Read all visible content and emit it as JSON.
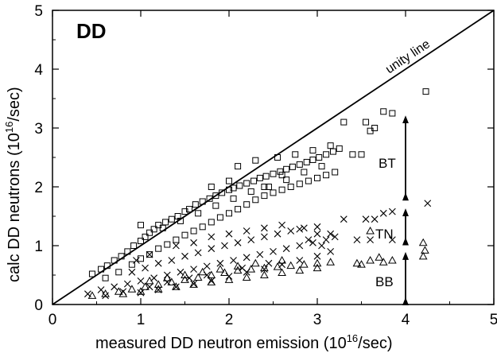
{
  "chart_data": {
    "type": "scatter",
    "title": "DD",
    "xlabel": "measured DD neutron emission (10",
    "xlabel_sup": "16",
    "xlabel_tail": "/sec)",
    "ylabel": "calc DD neutrons (10",
    "ylabel_sup": "16",
    "ylabel_tail": "/sec)",
    "xlim": [
      0,
      5
    ],
    "ylim": [
      0,
      5
    ],
    "xticks": [
      "0",
      "1",
      "2",
      "3",
      "4",
      "5"
    ],
    "yticks": [
      "0",
      "1",
      "2",
      "3",
      "4",
      "5"
    ],
    "grid": false,
    "legend": "none",
    "reference_line": {
      "label": "unity line",
      "x": [
        0,
        5
      ],
      "y": [
        0,
        5
      ]
    },
    "series": [
      {
        "key": "BT",
        "marker": "square",
        "points": [
          [
            0.45,
            0.52
          ],
          [
            0.55,
            0.6
          ],
          [
            0.62,
            0.66
          ],
          [
            0.7,
            0.75
          ],
          [
            0.78,
            0.82
          ],
          [
            0.85,
            0.9
          ],
          [
            0.92,
            1.0
          ],
          [
            1.0,
            1.08
          ],
          [
            1.05,
            1.15
          ],
          [
            1.1,
            1.22
          ],
          [
            1.15,
            1.28
          ],
          [
            1.2,
            1.35
          ],
          [
            1.28,
            1.4
          ],
          [
            1.35,
            1.45
          ],
          [
            1.42,
            1.5
          ],
          [
            1.5,
            1.58
          ],
          [
            1.55,
            1.62
          ],
          [
            1.62,
            1.7
          ],
          [
            1.7,
            1.75
          ],
          [
            1.78,
            1.8
          ],
          [
            1.85,
            1.85
          ],
          [
            1.92,
            1.9
          ],
          [
            2.0,
            1.95
          ],
          [
            2.05,
            1.98
          ],
          [
            2.12,
            2.02
          ],
          [
            2.2,
            2.06
          ],
          [
            2.28,
            2.1
          ],
          [
            2.35,
            2.15
          ],
          [
            2.42,
            2.18
          ],
          [
            2.5,
            2.22
          ],
          [
            2.58,
            2.26
          ],
          [
            2.65,
            2.3
          ],
          [
            2.72,
            2.34
          ],
          [
            2.8,
            2.38
          ],
          [
            2.88,
            2.42
          ],
          [
            2.95,
            2.46
          ],
          [
            3.02,
            2.5
          ],
          [
            3.1,
            2.55
          ],
          [
            3.18,
            2.6
          ],
          [
            3.25,
            2.65
          ],
          [
            0.6,
            0.45
          ],
          [
            0.75,
            0.55
          ],
          [
            0.9,
            0.68
          ],
          [
            1.0,
            0.78
          ],
          [
            1.1,
            0.85
          ],
          [
            1.2,
            0.95
          ],
          [
            1.3,
            1.02
          ],
          [
            1.4,
            1.1
          ],
          [
            1.5,
            1.18
          ],
          [
            1.6,
            1.25
          ],
          [
            1.7,
            1.32
          ],
          [
            1.8,
            1.4
          ],
          [
            1.9,
            1.48
          ],
          [
            2.0,
            1.55
          ],
          [
            2.1,
            1.62
          ],
          [
            2.2,
            1.7
          ],
          [
            2.3,
            1.78
          ],
          [
            2.4,
            1.85
          ],
          [
            2.5,
            1.9
          ],
          [
            2.6,
            1.95
          ],
          [
            2.7,
            2.0
          ],
          [
            2.8,
            2.05
          ],
          [
            2.9,
            2.1
          ],
          [
            3.0,
            2.15
          ],
          [
            3.1,
            2.2
          ],
          [
            3.2,
            2.25
          ],
          [
            1.25,
            1.3
          ],
          [
            1.45,
            1.42
          ],
          [
            1.65,
            1.55
          ],
          [
            1.85,
            1.68
          ],
          [
            2.05,
            1.8
          ],
          [
            2.25,
            1.92
          ],
          [
            2.45,
            2.0
          ],
          [
            2.65,
            2.12
          ],
          [
            2.85,
            2.25
          ],
          [
            3.05,
            2.35
          ],
          [
            2.1,
            2.35
          ],
          [
            2.3,
            2.45
          ],
          [
            2.55,
            2.5
          ],
          [
            2.75,
            2.55
          ],
          [
            2.95,
            2.62
          ],
          [
            3.15,
            2.7
          ],
          [
            1.8,
            2.0
          ],
          [
            2.0,
            2.1
          ],
          [
            2.4,
            2.0
          ],
          [
            2.6,
            2.2
          ],
          [
            3.3,
            3.1
          ],
          [
            3.4,
            2.55
          ],
          [
            3.5,
            2.55
          ],
          [
            3.55,
            3.1
          ],
          [
            3.6,
            2.95
          ],
          [
            3.75,
            3.28
          ],
          [
            3.85,
            3.25
          ],
          [
            4.23,
            3.62
          ],
          [
            3.65,
            3.0
          ],
          [
            1.0,
            1.35
          ]
        ]
      },
      {
        "key": "TN",
        "marker": "cross",
        "points": [
          [
            0.4,
            0.18
          ],
          [
            0.55,
            0.25
          ],
          [
            0.7,
            0.3
          ],
          [
            0.85,
            0.35
          ],
          [
            1.0,
            0.4
          ],
          [
            1.15,
            0.45
          ],
          [
            1.3,
            0.5
          ],
          [
            1.45,
            0.55
          ],
          [
            1.6,
            0.6
          ],
          [
            1.75,
            0.65
          ],
          [
            1.9,
            0.7
          ],
          [
            2.05,
            0.75
          ],
          [
            2.2,
            0.8
          ],
          [
            2.35,
            0.85
          ],
          [
            2.5,
            0.9
          ],
          [
            2.65,
            0.95
          ],
          [
            2.8,
            1.0
          ],
          [
            2.95,
            1.05
          ],
          [
            3.1,
            1.1
          ],
          [
            3.2,
            1.15
          ],
          [
            0.9,
            0.55
          ],
          [
            1.05,
            0.62
          ],
          [
            1.2,
            0.7
          ],
          [
            1.35,
            0.75
          ],
          [
            1.5,
            0.82
          ],
          [
            1.65,
            0.88
          ],
          [
            1.8,
            0.95
          ],
          [
            1.95,
            1.0
          ],
          [
            2.1,
            1.05
          ],
          [
            2.25,
            1.1
          ],
          [
            2.4,
            1.15
          ],
          [
            2.55,
            1.2
          ],
          [
            2.7,
            1.25
          ],
          [
            2.85,
            1.3
          ],
          [
            3.0,
            1.2
          ],
          [
            1.4,
            1.0
          ],
          [
            1.6,
            1.05
          ],
          [
            1.8,
            1.15
          ],
          [
            2.0,
            1.2
          ],
          [
            2.2,
            1.25
          ],
          [
            2.4,
            1.3
          ],
          [
            2.6,
            1.35
          ],
          [
            2.8,
            1.28
          ],
          [
            3.0,
            1.32
          ],
          [
            1.0,
            0.2
          ],
          [
            1.2,
            0.25
          ],
          [
            1.4,
            0.3
          ],
          [
            1.6,
            0.35
          ],
          [
            1.8,
            0.4
          ],
          [
            2.0,
            0.48
          ],
          [
            2.2,
            0.55
          ],
          [
            2.4,
            0.6
          ],
          [
            2.6,
            0.68
          ],
          [
            2.8,
            0.75
          ],
          [
            3.0,
            0.82
          ],
          [
            3.15,
            0.9
          ],
          [
            0.6,
            0.15
          ],
          [
            0.8,
            0.22
          ],
          [
            1.1,
            0.3
          ],
          [
            1.3,
            0.38
          ],
          [
            1.55,
            0.45
          ],
          [
            1.75,
            0.5
          ],
          [
            2.15,
            0.62
          ],
          [
            2.45,
            0.7
          ],
          [
            1.1,
            0.85
          ],
          [
            0.95,
            0.75
          ],
          [
            3.3,
            1.45
          ],
          [
            3.55,
            1.45
          ],
          [
            3.65,
            1.45
          ],
          [
            3.75,
            1.55
          ],
          [
            3.85,
            1.58
          ],
          [
            3.45,
            1.1
          ],
          [
            3.6,
            1.1
          ],
          [
            3.85,
            1.1
          ],
          [
            4.25,
            1.72
          ],
          [
            3.15,
            1.2
          ],
          [
            2.9,
            1.1
          ],
          [
            3.05,
            1.0
          ]
        ]
      },
      {
        "key": "BB",
        "marker": "triangle",
        "points": [
          [
            0.45,
            0.15
          ],
          [
            0.6,
            0.18
          ],
          [
            0.75,
            0.22
          ],
          [
            0.9,
            0.26
          ],
          [
            1.05,
            0.3
          ],
          [
            1.2,
            0.34
          ],
          [
            1.35,
            0.38
          ],
          [
            1.5,
            0.42
          ],
          [
            1.65,
            0.46
          ],
          [
            1.8,
            0.5
          ],
          [
            1.95,
            0.54
          ],
          [
            2.1,
            0.58
          ],
          [
            2.25,
            0.6
          ],
          [
            2.4,
            0.62
          ],
          [
            2.55,
            0.64
          ],
          [
            2.7,
            0.66
          ],
          [
            2.85,
            0.68
          ],
          [
            3.0,
            0.7
          ],
          [
            3.15,
            0.72
          ],
          [
            0.8,
            0.18
          ],
          [
            1.0,
            0.22
          ],
          [
            1.2,
            0.26
          ],
          [
            1.4,
            0.3
          ],
          [
            1.6,
            0.34
          ],
          [
            1.8,
            0.38
          ],
          [
            2.0,
            0.42
          ],
          [
            2.2,
            0.46
          ],
          [
            2.4,
            0.5
          ],
          [
            2.6,
            0.54
          ],
          [
            2.8,
            0.58
          ],
          [
            3.0,
            0.62
          ],
          [
            1.1,
            0.4
          ],
          [
            1.3,
            0.45
          ],
          [
            1.5,
            0.5
          ],
          [
            1.7,
            0.55
          ],
          [
            1.9,
            0.6
          ],
          [
            2.1,
            0.65
          ],
          [
            2.3,
            0.7
          ],
          [
            3.5,
            0.68
          ],
          [
            3.6,
            0.75
          ],
          [
            3.7,
            0.8
          ],
          [
            3.85,
            0.75
          ],
          [
            3.6,
            1.25
          ],
          [
            4.2,
            1.05
          ],
          [
            4.22,
            0.92
          ],
          [
            4.2,
            0.82
          ],
          [
            3.45,
            0.7
          ],
          [
            3.75,
            0.72
          ],
          [
            2.6,
            0.75
          ]
        ]
      }
    ],
    "annotations": {
      "unity": "unity line",
      "bt": "BT",
      "tn": "TN",
      "bb": "BB"
    },
    "range_arrows": [
      {
        "key": "BT",
        "y": [
          1.78,
          3.2
        ]
      },
      {
        "key": "TN",
        "y": [
          1.02,
          1.62
        ]
      },
      {
        "key": "BB",
        "y": [
          0.0,
          0.88
        ]
      }
    ]
  }
}
